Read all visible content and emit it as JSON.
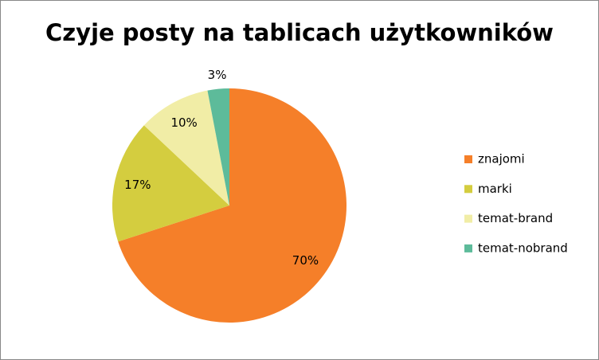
{
  "chart_data": {
    "type": "pie",
    "title": "Czyje posty na tablicach użytkowników",
    "categories": [
      "znajomi",
      "marki",
      "temat-brand",
      "temat-nobrand"
    ],
    "values": [
      70,
      17,
      10,
      3
    ],
    "value_labels": [
      "70%",
      "17%",
      "10%",
      "3%"
    ],
    "colors": [
      "#f57f29",
      "#d4cd3f",
      "#f1eda6",
      "#5dbb9a"
    ],
    "legend": "right"
  }
}
